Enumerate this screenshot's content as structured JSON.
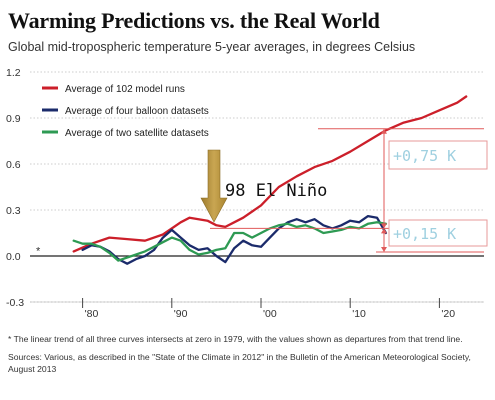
{
  "header": {
    "title": "Warming Predictions vs. the Real World",
    "subtitle": "Global mid-tropospheric temperature 5-year averages, in degrees Celsius"
  },
  "notes": {
    "footnote": "* The linear trend of all three curves intersects at zero in 1979, with the values shown as departures from that trend line.",
    "sources": "Sources: Various, as described in the \"State of the Climate in 2012\" in the Bulletin of the American Meteorological Society, August 2013"
  },
  "annotations": {
    "el_nino": "98 El Niño",
    "model_gap": "+0,75 K",
    "obs_gap": "+0,15 K",
    "start_marker": "*"
  },
  "colors": {
    "models": "#cc1f2a",
    "balloons": "#1b2b6b",
    "satellites": "#2e9a53",
    "arrow": "#b8953d",
    "annotation": "#e05a5a",
    "box_text": "#9fd0e0"
  },
  "chart_data": {
    "type": "line",
    "ylim": [
      -0.3,
      1.2
    ],
    "xlim": [
      1975,
      2025
    ],
    "y_ticks": [
      1.2,
      0.9,
      0.6,
      0.3,
      0.0,
      -0.3
    ],
    "y_tick_labels": [
      "1.2",
      "0.9",
      "0.6",
      "0.3",
      "0.0",
      "-0.3"
    ],
    "x_ticks": [
      1980,
      1990,
      2000,
      2010,
      2020
    ],
    "x_tick_labels": [
      "'80",
      "'90",
      "'00",
      "'10",
      "'20"
    ],
    "series": [
      {
        "name": "Average of 102 model runs",
        "color_key": "models",
        "points": [
          [
            1979,
            0.03
          ],
          [
            1981,
            0.08
          ],
          [
            1983,
            0.12
          ],
          [
            1985,
            0.11
          ],
          [
            1987,
            0.1
          ],
          [
            1989,
            0.14
          ],
          [
            1991,
            0.22
          ],
          [
            1992,
            0.25
          ],
          [
            1994,
            0.23
          ],
          [
            1995,
            0.2
          ],
          [
            1996,
            0.19
          ],
          [
            1997,
            0.22
          ],
          [
            1998,
            0.25
          ],
          [
            2000,
            0.33
          ],
          [
            2002,
            0.45
          ],
          [
            2004,
            0.52
          ],
          [
            2006,
            0.58
          ],
          [
            2008,
            0.62
          ],
          [
            2010,
            0.68
          ],
          [
            2012,
            0.75
          ],
          [
            2014,
            0.82
          ],
          [
            2016,
            0.87
          ],
          [
            2018,
            0.9
          ],
          [
            2020,
            0.95
          ],
          [
            2022,
            1.0
          ],
          [
            2023,
            1.04
          ]
        ]
      },
      {
        "name": "Average of four balloon datasets",
        "color_key": "balloons",
        "points": [
          [
            1980,
            0.04
          ],
          [
            1981,
            0.07
          ],
          [
            1982,
            0.06
          ],
          [
            1983,
            0.03
          ],
          [
            1984,
            -0.02
          ],
          [
            1985,
            -0.05
          ],
          [
            1986,
            -0.02
          ],
          [
            1987,
            0.0
          ],
          [
            1988,
            0.04
          ],
          [
            1989,
            0.12
          ],
          [
            1990,
            0.17
          ],
          [
            1991,
            0.12
          ],
          [
            1992,
            0.07
          ],
          [
            1993,
            0.04
          ],
          [
            1994,
            0.05
          ],
          [
            1995,
            0.0
          ],
          [
            1996,
            -0.04
          ],
          [
            1997,
            0.05
          ],
          [
            1998,
            0.1
          ],
          [
            1999,
            0.07
          ],
          [
            2000,
            0.06
          ],
          [
            2001,
            0.12
          ],
          [
            2002,
            0.18
          ],
          [
            2003,
            0.22
          ],
          [
            2004,
            0.24
          ],
          [
            2005,
            0.22
          ],
          [
            2006,
            0.24
          ],
          [
            2007,
            0.2
          ],
          [
            2008,
            0.18
          ],
          [
            2009,
            0.2
          ],
          [
            2010,
            0.23
          ],
          [
            2011,
            0.22
          ],
          [
            2012,
            0.26
          ],
          [
            2013,
            0.25
          ],
          [
            2014,
            0.15
          ]
        ]
      },
      {
        "name": "Average of two satellite datasets",
        "color_key": "satellites",
        "points": [
          [
            1979,
            0.1
          ],
          [
            1980,
            0.08
          ],
          [
            1981,
            0.08
          ],
          [
            1982,
            0.06
          ],
          [
            1983,
            0.02
          ],
          [
            1984,
            -0.03
          ],
          [
            1985,
            -0.01
          ],
          [
            1986,
            0.01
          ],
          [
            1987,
            0.03
          ],
          [
            1988,
            0.06
          ],
          [
            1989,
            0.09
          ],
          [
            1990,
            0.12
          ],
          [
            1991,
            0.1
          ],
          [
            1992,
            0.04
          ],
          [
            1993,
            0.01
          ],
          [
            1994,
            0.02
          ],
          [
            1995,
            0.04
          ],
          [
            1996,
            0.05
          ],
          [
            1997,
            0.15
          ],
          [
            1998,
            0.15
          ],
          [
            1999,
            0.12
          ],
          [
            2000,
            0.15
          ],
          [
            2001,
            0.18
          ],
          [
            2002,
            0.2
          ],
          [
            2003,
            0.21
          ],
          [
            2004,
            0.19
          ],
          [
            2005,
            0.2
          ],
          [
            2006,
            0.18
          ],
          [
            2007,
            0.15
          ],
          [
            2008,
            0.16
          ],
          [
            2009,
            0.17
          ],
          [
            2010,
            0.19
          ],
          [
            2011,
            0.18
          ],
          [
            2012,
            0.21
          ],
          [
            2013,
            0.22
          ],
          [
            2014,
            0.21
          ]
        ]
      }
    ],
    "legend_position": "top-left",
    "grid": true
  }
}
